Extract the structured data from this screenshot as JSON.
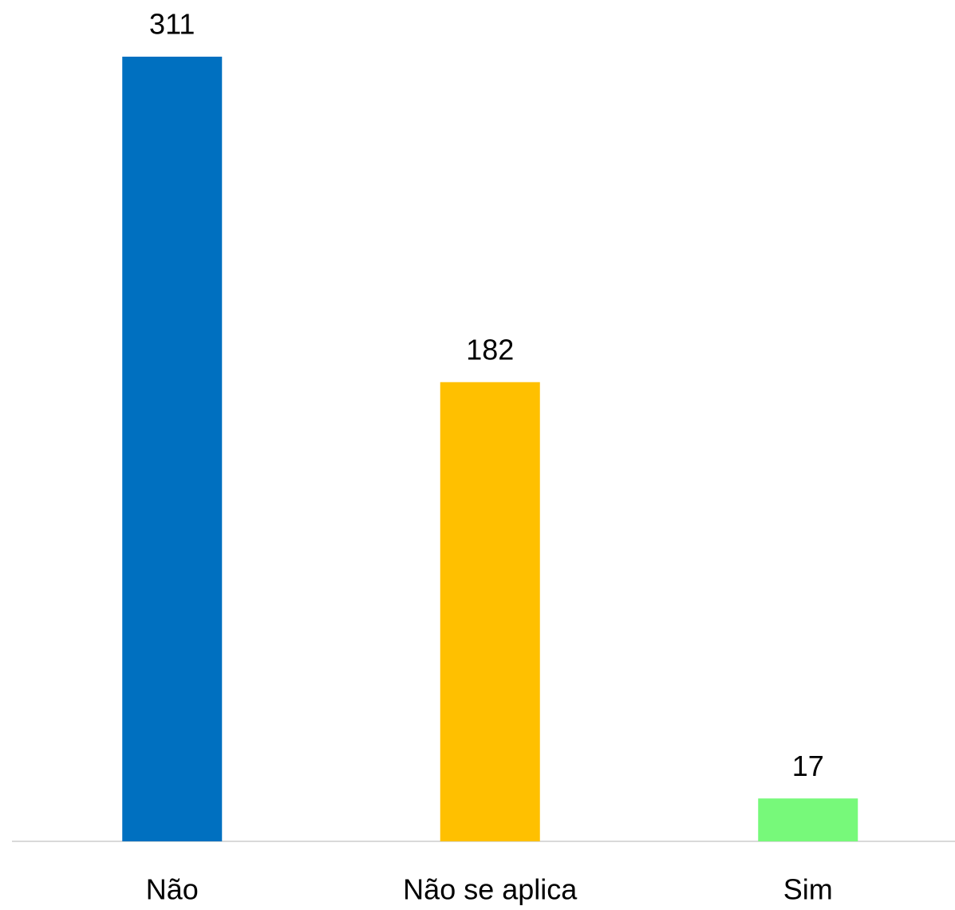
{
  "chart_data": {
    "type": "bar",
    "categories": [
      "Não",
      "Não se aplica",
      "Sim"
    ],
    "values": [
      311,
      182,
      17
    ],
    "colors": [
      "#0070c0",
      "#ffc000",
      "#77f97a"
    ]
  }
}
